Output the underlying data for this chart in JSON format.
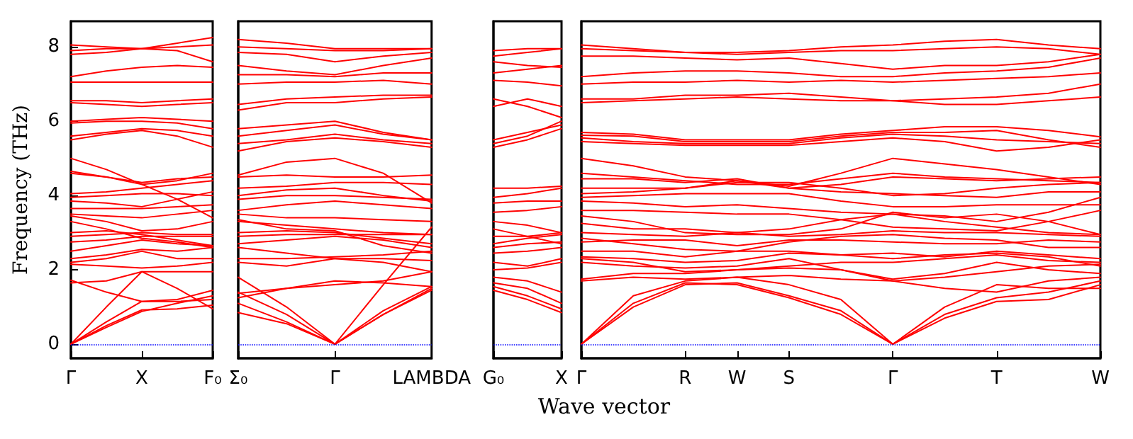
{
  "chart_data": [
    {
      "type": "line",
      "ylabel": "Frequency (THz)",
      "color": "#ff0000",
      "categories": [
        "Γ",
        null,
        "X",
        null,
        "F₀"
      ],
      "ylim": [
        -0.38,
        8.69
      ],
      "yticks": [
        0,
        2,
        4,
        6,
        8
      ],
      "ref_lines": [
        {
          "axis": "y",
          "value": 0,
          "color": "#0000ff",
          "line_style": "dotted"
        }
      ],
      "series": [
        {
          "values": [
            0,
            1.0,
            1.95,
            1.5,
            0.95
          ]
        },
        {
          "values": [
            0,
            0.5,
            0.92,
            0.95,
            1.05
          ]
        },
        {
          "values": [
            0,
            0.6,
            1.15,
            1.15,
            1.2
          ]
        },
        {
          "values": [
            0,
            0.45,
            0.88,
            1.1,
            1.3
          ]
        },
        {
          "values": [
            1.72,
            1.4,
            1.15,
            1.2,
            1.45
          ]
        },
        {
          "values": [
            1.65,
            1.7,
            1.95,
            1.95,
            1.95
          ]
        },
        {
          "values": [
            2.15,
            2.1,
            2.05,
            2.1,
            2.2
          ]
        },
        {
          "values": [
            2.2,
            2.3,
            2.5,
            2.3,
            2.3
          ]
        },
        {
          "values": [
            2.3,
            2.4,
            2.55,
            2.5,
            2.6
          ]
        },
        {
          "values": [
            2.5,
            2.65,
            2.8,
            2.7,
            2.65
          ]
        },
        {
          "values": [
            2.75,
            2.8,
            2.9,
            2.9,
            2.9
          ]
        },
        {
          "values": [
            2.9,
            2.95,
            3.0,
            2.95,
            2.95
          ]
        },
        {
          "values": [
            3.0,
            3.05,
            2.95,
            2.8,
            2.65
          ]
        },
        {
          "values": [
            3.3,
            3.1,
            2.85,
            2.75,
            2.6
          ]
        },
        {
          "values": [
            3.45,
            3.3,
            3.05,
            3.1,
            3.3
          ]
        },
        {
          "values": [
            3.5,
            3.45,
            3.4,
            3.5,
            3.6
          ]
        },
        {
          "values": [
            3.65,
            3.65,
            3.65,
            3.7,
            3.75
          ]
        },
        {
          "values": [
            3.85,
            3.8,
            3.7,
            3.9,
            4.1
          ]
        },
        {
          "values": [
            3.95,
            4.0,
            4.05,
            4.05,
            4.0
          ]
        },
        {
          "values": [
            4.05,
            4.1,
            4.2,
            4.3,
            4.4
          ]
        },
        {
          "values": [
            4.6,
            4.5,
            4.3,
            4.4,
            4.6
          ]
        },
        {
          "values": [
            4.65,
            4.5,
            4.35,
            4.45,
            4.5
          ]
        },
        {
          "values": [
            5.0,
            4.7,
            4.3,
            3.9,
            3.4
          ]
        },
        {
          "values": [
            5.5,
            5.65,
            5.75,
            5.6,
            5.3
          ]
        },
        {
          "values": [
            5.6,
            5.7,
            5.8,
            5.75,
            5.6
          ]
        },
        {
          "values": [
            5.95,
            6.0,
            6.0,
            5.95,
            5.8
          ]
        },
        {
          "values": [
            6.0,
            6.05,
            6.1,
            6.05,
            6.0
          ]
        },
        {
          "values": [
            6.5,
            6.45,
            6.4,
            6.45,
            6.5
          ]
        },
        {
          "values": [
            6.55,
            6.55,
            6.5,
            6.55,
            6.6
          ]
        },
        {
          "values": [
            7.05,
            7.05,
            7.05,
            7.05,
            7.05
          ]
        },
        {
          "values": [
            7.2,
            7.35,
            7.45,
            7.5,
            7.45
          ]
        },
        {
          "values": [
            7.8,
            7.85,
            7.95,
            7.9,
            7.6
          ]
        },
        {
          "values": [
            7.9,
            7.95,
            7.95,
            8.0,
            8.05
          ]
        },
        {
          "values": [
            8.05,
            8.0,
            7.95,
            8.1,
            8.25
          ]
        }
      ]
    },
    {
      "type": "line",
      "color": "#ff0000",
      "categories": [
        "Σ₀",
        null,
        "Γ",
        null,
        "LAMBDA"
      ],
      "ylim": [
        -0.38,
        8.69
      ],
      "yticks": [
        0,
        2,
        4,
        6,
        8
      ],
      "tick_labels": "x",
      "ref_lines": [
        {
          "axis": "y",
          "value": 0,
          "color": "#0000ff",
          "line_style": "dotted"
        }
      ],
      "series": [
        {
          "values": [
            0.85,
            0.55,
            0,
            0.8,
            1.45
          ]
        },
        {
          "values": [
            1.1,
            0.6,
            0,
            0.8,
            1.5
          ]
        },
        {
          "values": [
            1.4,
            0.8,
            0,
            0.9,
            1.55
          ]
        },
        {
          "values": [
            1.25,
            1.5,
            1.7,
            1.65,
            1.55
          ]
        },
        {
          "values": [
            1.37,
            1.5,
            1.6,
            1.7,
            1.95
          ]
        },
        {
          "values": [
            1.8,
            1.0,
            0,
            1.6,
            3.15
          ]
        },
        {
          "values": [
            2.2,
            2.1,
            2.3,
            2.3,
            2.25
          ]
        },
        {
          "values": [
            2.3,
            2.3,
            2.35,
            2.4,
            2.5
          ]
        },
        {
          "values": [
            2.6,
            2.45,
            2.3,
            2.2,
            1.95
          ]
        },
        {
          "values": [
            2.7,
            2.8,
            2.9,
            2.8,
            2.6
          ]
        },
        {
          "values": [
            2.9,
            2.95,
            2.95,
            2.95,
            2.95
          ]
        },
        {
          "values": [
            3.0,
            3.05,
            3.0,
            2.85,
            2.7
          ]
        },
        {
          "values": [
            3.3,
            3.2,
            3.1,
            3.0,
            2.95
          ]
        },
        {
          "values": [
            3.35,
            3.1,
            3.05,
            2.65,
            2.45
          ]
        },
        {
          "values": [
            3.5,
            3.4,
            3.4,
            3.35,
            3.3
          ]
        },
        {
          "values": [
            3.6,
            3.75,
            3.85,
            3.75,
            3.65
          ]
        },
        {
          "values": [
            3.9,
            4.0,
            4.0,
            3.95,
            3.9
          ]
        },
        {
          "values": [
            4.0,
            4.15,
            4.2,
            4.0,
            3.85
          ]
        },
        {
          "values": [
            4.2,
            4.25,
            4.35,
            4.35,
            4.3
          ]
        },
        {
          "values": [
            4.5,
            4.55,
            4.5,
            4.5,
            4.55
          ]
        },
        {
          "values": [
            4.55,
            4.9,
            5.0,
            4.6,
            3.8
          ]
        },
        {
          "values": [
            5.2,
            5.45,
            5.55,
            5.45,
            5.3
          ]
        },
        {
          "values": [
            5.4,
            5.5,
            5.65,
            5.5,
            5.4
          ]
        },
        {
          "values": [
            5.6,
            5.75,
            5.9,
            5.65,
            5.5
          ]
        },
        {
          "values": [
            5.8,
            5.9,
            6.0,
            5.7,
            5.5
          ]
        },
        {
          "values": [
            6.3,
            6.5,
            6.5,
            6.6,
            6.65
          ]
        },
        {
          "values": [
            6.45,
            6.6,
            6.65,
            6.7,
            6.7
          ]
        },
        {
          "values": [
            7.0,
            7.05,
            7.05,
            7.1,
            7.0
          ]
        },
        {
          "values": [
            7.25,
            7.25,
            7.2,
            7.3,
            7.3
          ]
        },
        {
          "values": [
            7.5,
            7.35,
            7.25,
            7.5,
            7.7
          ]
        },
        {
          "values": [
            7.85,
            7.8,
            7.6,
            7.75,
            7.85
          ]
        },
        {
          "values": [
            8.0,
            7.95,
            7.9,
            7.9,
            7.95
          ]
        },
        {
          "values": [
            8.2,
            8.1,
            7.95,
            7.95,
            7.95
          ]
        }
      ]
    },
    {
      "type": "line",
      "color": "#ff0000",
      "categories": [
        "G₀",
        null,
        "X"
      ],
      "ylim": [
        -0.38,
        8.69
      ],
      "yticks": [
        0,
        2,
        4,
        6,
        8
      ],
      "tick_labels": "x",
      "ref_lines": [
        {
          "axis": "y",
          "value": 0,
          "color": "#0000ff",
          "line_style": "dotted"
        }
      ],
      "series": [
        {
          "values": [
            1.45,
            1.2,
            0.85
          ]
        },
        {
          "values": [
            1.55,
            1.3,
            0.95
          ]
        },
        {
          "values": [
            1.65,
            1.5,
            1.1
          ]
        },
        {
          "values": [
            1.8,
            1.7,
            1.4
          ]
        },
        {
          "values": [
            2.0,
            2.05,
            2.2
          ]
        },
        {
          "values": [
            2.2,
            2.1,
            2.3
          ]
        },
        {
          "values": [
            2.45,
            2.5,
            2.6
          ]
        },
        {
          "values": [
            2.6,
            2.7,
            2.75
          ]
        },
        {
          "values": [
            2.7,
            2.85,
            2.95
          ]
        },
        {
          "values": [
            2.9,
            2.9,
            3.0
          ]
        },
        {
          "values": [
            3.1,
            2.9,
            2.7
          ]
        },
        {
          "values": [
            3.3,
            3.2,
            3.0
          ]
        },
        {
          "values": [
            3.55,
            3.6,
            3.7
          ]
        },
        {
          "values": [
            3.8,
            3.85,
            3.85
          ]
        },
        {
          "values": [
            3.95,
            4.05,
            4.2
          ]
        },
        {
          "values": [
            4.2,
            4.2,
            4.25
          ]
        },
        {
          "values": [
            5.3,
            5.5,
            5.8
          ]
        },
        {
          "values": [
            5.4,
            5.6,
            6.0
          ]
        },
        {
          "values": [
            5.5,
            5.7,
            5.9
          ]
        },
        {
          "values": [
            6.4,
            6.6,
            6.4
          ]
        },
        {
          "values": [
            6.6,
            6.4,
            6.1
          ]
        },
        {
          "values": [
            7.1,
            7.05,
            6.95
          ]
        },
        {
          "values": [
            7.3,
            7.4,
            7.5
          ]
        },
        {
          "values": [
            7.6,
            7.5,
            7.45
          ]
        },
        {
          "values": [
            7.75,
            7.85,
            7.95
          ]
        },
        {
          "values": [
            7.9,
            7.95,
            7.95
          ]
        }
      ]
    },
    {
      "type": "line",
      "xlabel": "Wave vector",
      "color": "#ff0000",
      "categories": [
        "Γ",
        null,
        "R",
        "W",
        "S",
        null,
        "Γ",
        null,
        "T",
        null,
        "W"
      ],
      "ylim": [
        -0.38,
        8.69
      ],
      "yticks": [
        0,
        2,
        4,
        6,
        8
      ],
      "tick_labels": "x",
      "ref_lines": [
        {
          "axis": "y",
          "value": 0,
          "color": "#0000ff",
          "line_style": "dotted"
        }
      ],
      "series": [
        {
          "values": [
            0,
            1.1,
            1.65,
            1.6,
            1.25,
            0.8,
            0,
            0.7,
            1.15,
            1.2,
            1.6
          ]
        },
        {
          "values": [
            0,
            1.0,
            1.6,
            1.65,
            1.3,
            0.9,
            0,
            0.8,
            1.25,
            1.4,
            1.7
          ]
        },
        {
          "values": [
            0,
            1.3,
            1.7,
            1.8,
            1.6,
            1.2,
            0,
            1.0,
            1.6,
            1.5,
            1.5
          ]
        },
        {
          "values": [
            1.7,
            1.8,
            1.75,
            1.8,
            1.85,
            1.75,
            1.7,
            1.5,
            1.4,
            1.7,
            1.8
          ]
        },
        {
          "values": [
            1.75,
            1.9,
            1.9,
            2.0,
            2.05,
            2.0,
            1.75,
            1.9,
            2.2,
            2.0,
            1.9
          ]
        },
        {
          "values": [
            2.2,
            2.1,
            2.05,
            2.1,
            2.3,
            2.0,
            1.7,
            1.8,
            1.95,
            2.1,
            2.15
          ]
        },
        {
          "values": [
            2.3,
            2.2,
            1.95,
            2.0,
            2.1,
            2.2,
            2.2,
            2.3,
            2.4,
            2.25,
            2.2
          ]
        },
        {
          "values": [
            2.35,
            2.3,
            2.2,
            2.25,
            2.45,
            2.4,
            2.3,
            2.4,
            2.45,
            2.35,
            2.1
          ]
        },
        {
          "values": [
            2.5,
            2.5,
            2.35,
            2.5,
            2.5,
            2.4,
            2.45,
            2.35,
            2.5,
            2.4,
            2.3
          ]
        },
        {
          "values": [
            2.75,
            2.8,
            2.8,
            2.65,
            2.8,
            2.8,
            2.75,
            2.7,
            2.7,
            2.8,
            2.75
          ]
        },
        {
          "values": [
            2.85,
            2.7,
            2.55,
            2.5,
            2.75,
            2.9,
            2.95,
            2.85,
            2.8,
            2.6,
            2.6
          ]
        },
        {
          "values": [
            3.0,
            2.95,
            2.9,
            3.0,
            2.9,
            2.95,
            3.05,
            3.0,
            3.0,
            2.95,
            2.9
          ]
        },
        {
          "values": [
            3.25,
            3.1,
            3.1,
            3.0,
            3.1,
            3.35,
            3.5,
            3.3,
            3.15,
            3.0,
            2.95
          ]
        },
        {
          "values": [
            3.45,
            3.3,
            3.0,
            2.95,
            2.95,
            3.1,
            3.55,
            3.4,
            3.5,
            3.3,
            2.95
          ]
        },
        {
          "values": [
            3.6,
            3.6,
            3.55,
            3.5,
            3.5,
            3.35,
            3.15,
            3.1,
            3.05,
            3.3,
            3.6
          ]
        },
        {
          "values": [
            3.85,
            3.8,
            3.7,
            3.75,
            3.65,
            3.55,
            3.5,
            3.45,
            3.3,
            3.55,
            3.95
          ]
        },
        {
          "values": [
            3.95,
            4.0,
            4.05,
            4.05,
            4.05,
            3.85,
            3.7,
            3.7,
            3.75,
            3.75,
            3.75
          ]
        },
        {
          "values": [
            4.05,
            4.1,
            4.2,
            4.4,
            4.2,
            4.1,
            4.05,
            4.0,
            3.95,
            4.1,
            4.1
          ]
        },
        {
          "values": [
            4.2,
            4.2,
            4.2,
            4.35,
            4.35,
            4.2,
            4.0,
            4.05,
            4.2,
            4.3,
            4.35
          ]
        },
        {
          "values": [
            4.45,
            4.45,
            4.35,
            4.45,
            4.2,
            4.3,
            4.5,
            4.45,
            4.4,
            4.45,
            4.5
          ]
        },
        {
          "values": [
            4.6,
            4.5,
            4.4,
            4.3,
            4.3,
            4.45,
            4.6,
            4.5,
            4.45,
            4.4,
            4.35
          ]
        },
        {
          "values": [
            5.0,
            4.8,
            4.5,
            4.4,
            4.25,
            4.6,
            5.0,
            4.85,
            4.7,
            4.5,
            4.3
          ]
        },
        {
          "values": [
            5.45,
            5.4,
            5.35,
            5.35,
            5.35,
            5.45,
            5.55,
            5.45,
            5.2,
            5.3,
            5.5
          ]
        },
        {
          "values": [
            5.55,
            5.45,
            5.4,
            5.4,
            5.4,
            5.55,
            5.65,
            5.6,
            5.5,
            5.45,
            5.4
          ]
        },
        {
          "values": [
            5.62,
            5.6,
            5.45,
            5.45,
            5.45,
            5.6,
            5.7,
            5.7,
            5.75,
            5.5,
            5.3
          ]
        },
        {
          "values": [
            5.7,
            5.65,
            5.5,
            5.5,
            5.5,
            5.65,
            5.75,
            5.85,
            5.85,
            5.75,
            5.58
          ]
        },
        {
          "values": [
            6.5,
            6.55,
            6.6,
            6.65,
            6.6,
            6.55,
            6.55,
            6.45,
            6.45,
            6.55,
            6.65
          ]
        },
        {
          "values": [
            6.6,
            6.6,
            6.7,
            6.7,
            6.75,
            6.65,
            6.55,
            6.6,
            6.65,
            6.75,
            7.0
          ]
        },
        {
          "values": [
            7.0,
            7.05,
            7.05,
            7.1,
            7.05,
            7.1,
            7.05,
            7.1,
            7.15,
            7.2,
            7.3
          ]
        },
        {
          "values": [
            7.2,
            7.3,
            7.35,
            7.35,
            7.3,
            7.2,
            7.2,
            7.3,
            7.35,
            7.45,
            7.7
          ]
        },
        {
          "values": [
            7.75,
            7.75,
            7.7,
            7.65,
            7.7,
            7.55,
            7.4,
            7.5,
            7.5,
            7.6,
            7.8
          ]
        },
        {
          "values": [
            7.95,
            7.9,
            7.85,
            7.8,
            7.85,
            7.9,
            7.9,
            7.95,
            8.0,
            7.95,
            7.8
          ]
        },
        {
          "values": [
            8.05,
            7.95,
            7.85,
            7.85,
            7.9,
            8.0,
            8.05,
            8.15,
            8.2,
            8.05,
            7.95
          ]
        }
      ]
    }
  ]
}
